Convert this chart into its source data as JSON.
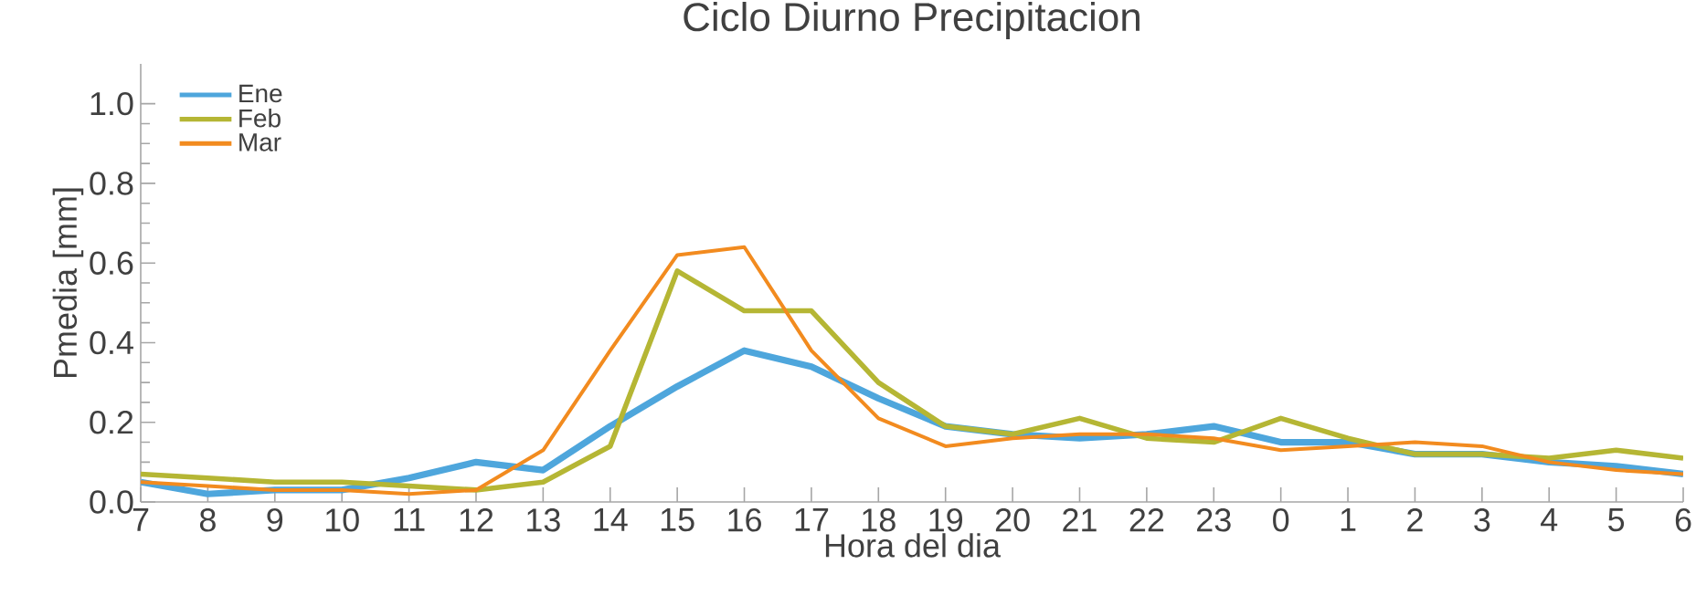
{
  "chart_data": {
    "type": "line",
    "title": "Ciclo Diurno Precipitacion",
    "xlabel": "Hora del dia",
    "ylabel": "Pmedia [mm]",
    "categories": [
      "7",
      "8",
      "9",
      "10",
      "11",
      "12",
      "13",
      "14",
      "15",
      "16",
      "17",
      "18",
      "19",
      "20",
      "21",
      "22",
      "23",
      "0",
      "1",
      "2",
      "3",
      "4",
      "5",
      "6"
    ],
    "series": [
      {
        "name": "Ene",
        "color": "#4ea6dc",
        "values": [
          0.05,
          0.02,
          0.03,
          0.03,
          0.06,
          0.1,
          0.08,
          0.19,
          0.29,
          0.38,
          0.34,
          0.26,
          0.19,
          0.17,
          0.16,
          0.17,
          0.19,
          0.15,
          0.15,
          0.12,
          0.12,
          0.1,
          0.09,
          0.07
        ]
      },
      {
        "name": "Feb",
        "color": "#b5b634",
        "values": [
          0.07,
          0.06,
          0.05,
          0.05,
          0.04,
          0.03,
          0.05,
          0.14,
          0.58,
          0.48,
          0.48,
          0.3,
          0.19,
          0.17,
          0.21,
          0.16,
          0.15,
          0.21,
          0.16,
          0.12,
          0.12,
          0.11,
          0.13,
          0.11
        ]
      },
      {
        "name": "Mar",
        "color": "#f28b1f",
        "values": [
          0.05,
          0.04,
          0.03,
          0.03,
          0.02,
          0.03,
          0.13,
          0.38,
          0.62,
          0.64,
          0.38,
          0.21,
          0.14,
          0.16,
          0.17,
          0.17,
          0.16,
          0.13,
          0.14,
          0.15,
          0.14,
          0.1,
          0.08,
          0.07
        ]
      }
    ],
    "ylim": [
      0,
      1.1
    ],
    "yticks": [
      {
        "value": 0,
        "label": "0.0"
      },
      {
        "value": 0.2,
        "label": "0.2"
      },
      {
        "value": 0.4,
        "label": "0.4"
      },
      {
        "value": 0.6,
        "label": "0.6"
      },
      {
        "value": 0.8,
        "label": "0.8"
      },
      {
        "value": 1.0,
        "label": "1.0"
      }
    ],
    "grid": false,
    "legend": "top left",
    "marker": "none",
    "line_style": "solid"
  }
}
